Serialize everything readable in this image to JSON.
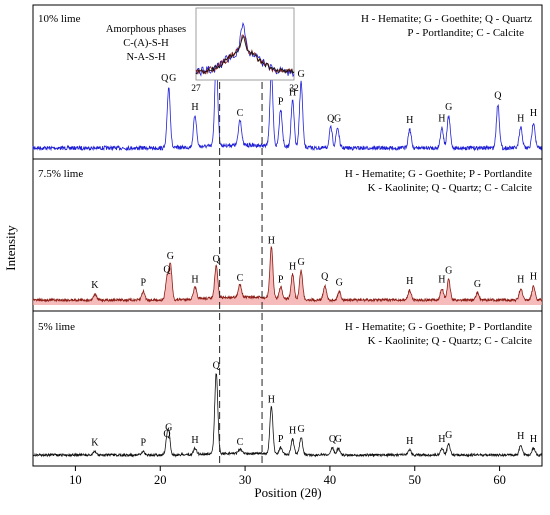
{
  "chart_data": {
    "type": "line",
    "title": "",
    "xlabel": "Position (2θ)",
    "ylabel": "Intensity",
    "xlim": [
      5,
      65
    ],
    "x_ticks": [
      10,
      20,
      30,
      40,
      50,
      60
    ],
    "grid": false,
    "reference_lines_x": [
      27,
      32
    ],
    "panels": [
      {
        "name": "10% lime",
        "title": "10% lime",
        "color": "#1f1fd6",
        "legend": [
          "H - Hematite; G - Goethite; Q - Quartz",
          "P - Portlandite; C - Calcite"
        ],
        "peaks": [
          {
            "x": 21.0,
            "rel": 0.42,
            "labels": [
              "Q",
              "G"
            ]
          },
          {
            "x": 24.1,
            "rel": 0.22,
            "labels": [
              "H"
            ]
          },
          {
            "x": 26.6,
            "rel": 0.6,
            "labels": [
              "Q"
            ]
          },
          {
            "x": 29.4,
            "rel": 0.18,
            "labels": [
              "C"
            ]
          },
          {
            "x": 33.1,
            "rel": 0.5,
            "labels": [
              "H"
            ]
          },
          {
            "x": 34.2,
            "rel": 0.26,
            "labels": [
              "P"
            ]
          },
          {
            "x": 35.6,
            "rel": 0.32,
            "labels": [
              "H"
            ]
          },
          {
            "x": 36.6,
            "rel": 0.45,
            "labels": [
              "G"
            ]
          },
          {
            "x": 40.1,
            "rel": 0.14,
            "labels": [
              "Q"
            ]
          },
          {
            "x": 40.9,
            "rel": 0.14,
            "labels": [
              "G"
            ]
          },
          {
            "x": 49.4,
            "rel": 0.13,
            "labels": [
              "H"
            ]
          },
          {
            "x": 53.2,
            "rel": 0.14,
            "labels": [
              "H"
            ]
          },
          {
            "x": 54.0,
            "rel": 0.22,
            "labels": [
              "G"
            ]
          },
          {
            "x": 59.8,
            "rel": 0.3,
            "labels": [
              "Q"
            ]
          },
          {
            "x": 62.5,
            "rel": 0.14,
            "labels": [
              "H"
            ]
          },
          {
            "x": 64.0,
            "rel": 0.18,
            "labels": [
              "H"
            ]
          }
        ]
      },
      {
        "name": "7.5% lime",
        "title": "7.5% lime",
        "color": "#8b1c14",
        "fill_color": "#f3a6a6",
        "legend": [
          "H - Hematite; G - Goethite; P - Portlandite",
          "K - Kaolinite; Q - Quartz; C - Calcite"
        ],
        "peaks": [
          {
            "x": 12.3,
            "rel": 0.04,
            "labels": [
              "K"
            ]
          },
          {
            "x": 18.0,
            "rel": 0.06,
            "labels": [
              "P"
            ]
          },
          {
            "x": 20.8,
            "rel": 0.15,
            "labels": [
              "Q"
            ]
          },
          {
            "x": 21.2,
            "rel": 0.24,
            "labels": [
              "G"
            ]
          },
          {
            "x": 24.1,
            "rel": 0.08,
            "labels": [
              "H"
            ]
          },
          {
            "x": 26.6,
            "rel": 0.22,
            "labels": [
              "Q"
            ]
          },
          {
            "x": 29.4,
            "rel": 0.09,
            "labels": [
              "C"
            ]
          },
          {
            "x": 33.1,
            "rel": 0.35,
            "labels": [
              "H"
            ]
          },
          {
            "x": 34.2,
            "rel": 0.08,
            "labels": [
              "P"
            ]
          },
          {
            "x": 35.6,
            "rel": 0.17,
            "labels": [
              "H"
            ]
          },
          {
            "x": 36.6,
            "rel": 0.2,
            "labels": [
              "G"
            ]
          },
          {
            "x": 39.4,
            "rel": 0.1,
            "labels": [
              "Q"
            ]
          },
          {
            "x": 41.1,
            "rel": 0.06,
            "labels": [
              "G"
            ]
          },
          {
            "x": 49.4,
            "rel": 0.07,
            "labels": [
              "H"
            ]
          },
          {
            "x": 53.2,
            "rel": 0.08,
            "labels": [
              "H"
            ]
          },
          {
            "x": 54.0,
            "rel": 0.14,
            "labels": [
              "G"
            ]
          },
          {
            "x": 57.4,
            "rel": 0.05,
            "labels": [
              "G"
            ]
          },
          {
            "x": 62.5,
            "rel": 0.08,
            "labels": [
              "H"
            ]
          },
          {
            "x": 64.0,
            "rel": 0.1,
            "labels": [
              "H"
            ]
          }
        ]
      },
      {
        "name": "5% lime",
        "title": "5% lime",
        "color": "#111111",
        "legend": [
          "H - Hematite; G - Goethite; P - Portlandite",
          "K - Kaolinite; Q - Quartz; C - Calcite"
        ],
        "peaks": [
          {
            "x": 12.3,
            "rel": 0.04,
            "labels": [
              "K"
            ]
          },
          {
            "x": 18.0,
            "rel": 0.04,
            "labels": [
              "P"
            ]
          },
          {
            "x": 20.8,
            "rel": 0.14,
            "labels": [
              "Q"
            ]
          },
          {
            "x": 21.0,
            "rel": 0.22,
            "labels": [
              "G"
            ]
          },
          {
            "x": 24.1,
            "rel": 0.07,
            "labels": [
              "H"
            ]
          },
          {
            "x": 26.6,
            "rel": 0.95,
            "labels": [
              "Q"
            ]
          },
          {
            "x": 29.4,
            "rel": 0.05,
            "labels": [
              "C"
            ]
          },
          {
            "x": 33.1,
            "rel": 0.55,
            "labels": [
              "H"
            ]
          },
          {
            "x": 34.2,
            "rel": 0.08,
            "labels": [
              "P"
            ]
          },
          {
            "x": 35.6,
            "rel": 0.18,
            "labels": [
              "H"
            ]
          },
          {
            "x": 36.6,
            "rel": 0.2,
            "labels": [
              "G"
            ]
          },
          {
            "x": 40.3,
            "rel": 0.08,
            "labels": [
              "Q"
            ]
          },
          {
            "x": 41.0,
            "rel": 0.08,
            "labels": [
              "G"
            ]
          },
          {
            "x": 49.4,
            "rel": 0.06,
            "labels": [
              "H"
            ]
          },
          {
            "x": 53.2,
            "rel": 0.08,
            "labels": [
              "H"
            ]
          },
          {
            "x": 54.0,
            "rel": 0.13,
            "labels": [
              "G"
            ]
          },
          {
            "x": 62.5,
            "rel": 0.12,
            "labels": [
              "H"
            ]
          },
          {
            "x": 64.0,
            "rel": 0.08,
            "labels": [
              "H"
            ]
          }
        ]
      }
    ],
    "annotations": {
      "amorphous_phases": [
        "Amorphous phases",
        "C-(A)-S-H",
        "N-A-S-H"
      ],
      "inset": {
        "xlim": [
          27,
          32
        ],
        "x_ticks": [
          "27",
          "32"
        ],
        "series_colors": [
          "#1f1fd6",
          "#8b1c14",
          "#111111"
        ]
      }
    }
  }
}
